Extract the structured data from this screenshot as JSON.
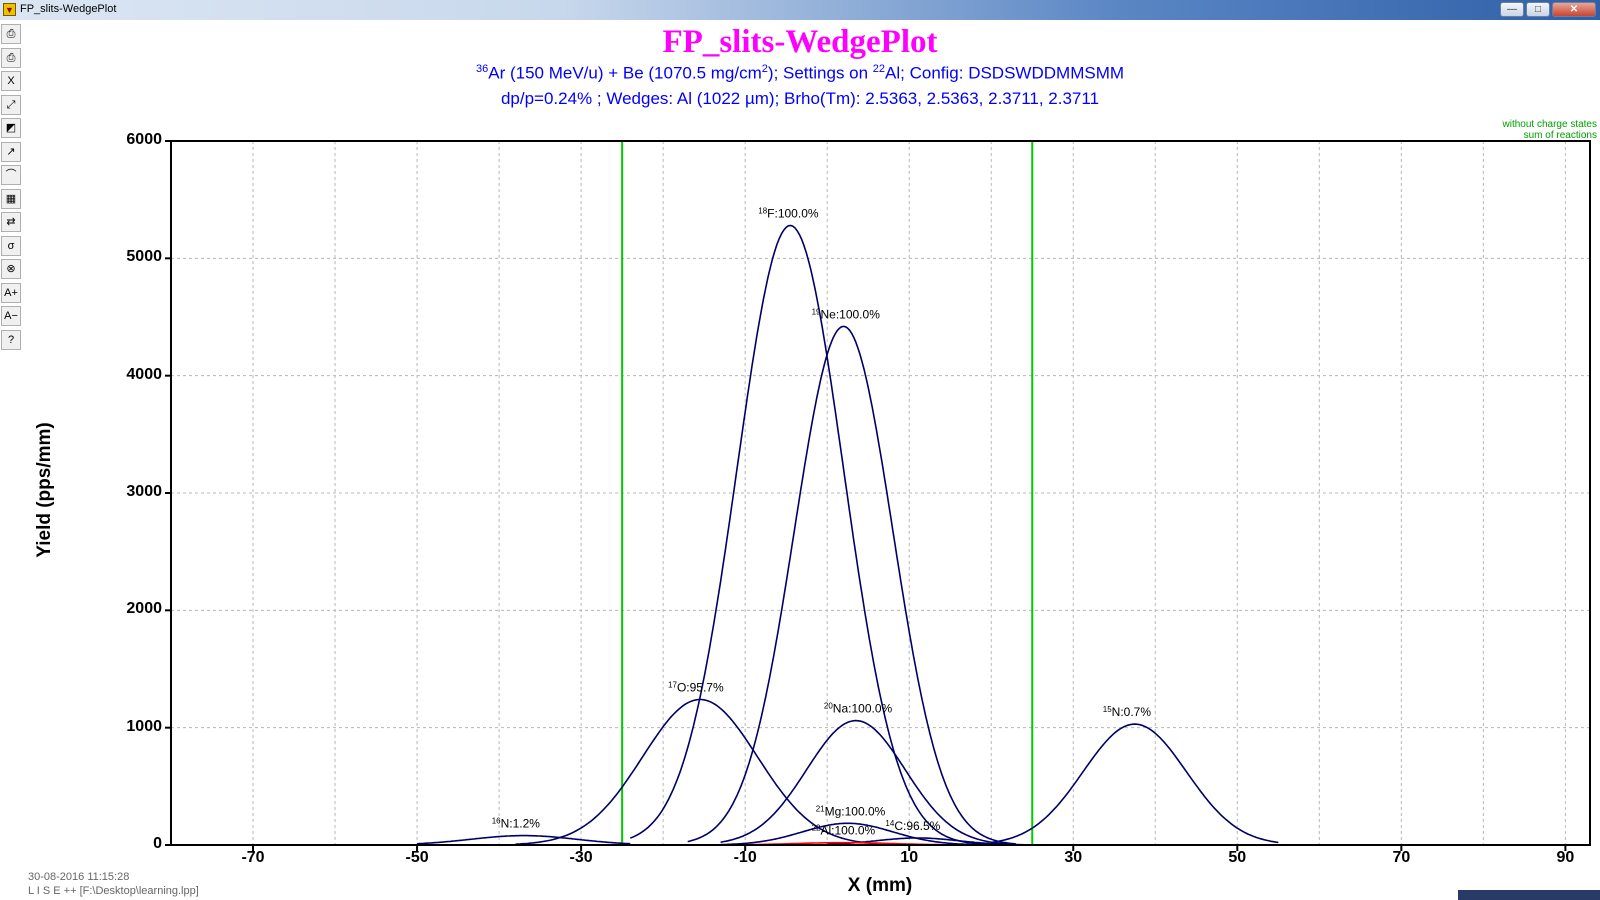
{
  "window": {
    "title": "FP_slits-WedgePlot",
    "minimize": "—",
    "maximize": "□",
    "close": "✕"
  },
  "toolbar": {
    "items": [
      {
        "name": "print-icon",
        "glyph": "⎙"
      },
      {
        "name": "print-setup-icon",
        "glyph": "⎙"
      },
      {
        "name": "close-plot-icon",
        "glyph": "X"
      },
      {
        "name": "zoom-icon",
        "glyph": "⤢"
      },
      {
        "name": "color-icon",
        "glyph": "◩"
      },
      {
        "name": "log-scale-icon",
        "glyph": "↗"
      },
      {
        "name": "curve-icon",
        "glyph": "⌒"
      },
      {
        "name": "table-icon",
        "glyph": "▦"
      },
      {
        "name": "swap-icon",
        "glyph": "⇄"
      },
      {
        "name": "sigma-icon",
        "glyph": "σ"
      },
      {
        "name": "cancel-icon",
        "glyph": "⊗"
      },
      {
        "name": "font-larger-icon",
        "glyph": "A+"
      },
      {
        "name": "font-smaller-icon",
        "glyph": "A−"
      },
      {
        "name": "help-icon",
        "glyph": "?"
      }
    ]
  },
  "header": {
    "title": "FP_slits-WedgePlot",
    "line1": {
      "beam_mass": "36",
      "beam": "Ar (150 MeV/u) + Be (1070.5 mg/cm",
      "target_exp": "2",
      "settings": ");  Settings on ",
      "setting_mass": "22",
      "setting_rest": "Al;  Config: DSDSWDDMMSMM"
    },
    "line2": "dp/p=0.24% ; Wedges: Al (1022 µm); Brho(Tm): 2.5363, 2.5363, 2.3711, 2.3711",
    "legend1": "without charge states",
    "legend2": "sum of reactions"
  },
  "footer": {
    "timestamp": "30-08-2016  11:15:28",
    "file": "L I S E ++  [F:\\Desktop\\learning.lpp]"
  },
  "chart_data": {
    "type": "line",
    "title": "FP_slits-WedgePlot",
    "xlabel": "X (mm)",
    "ylabel": "Yield (pps/mm)",
    "xlim": [
      -80,
      93
    ],
    "ylim": [
      0,
      6000
    ],
    "x_ticks": [
      -70,
      -50,
      -30,
      -10,
      10,
      30,
      50,
      70,
      90
    ],
    "y_ticks": [
      0,
      1000,
      2000,
      3000,
      4000,
      5000,
      6000
    ],
    "grid": true,
    "slits": {
      "x": [
        -25,
        25
      ],
      "color": "#00cc00"
    },
    "colors": {
      "curve": "#000066",
      "setting_curve": "#ff0000"
    },
    "series": [
      {
        "name": "18F:100.0%",
        "mass": "18",
        "label": "F:100.0%",
        "peak": {
          "x": -4.5,
          "y": 5280
        },
        "sigma": 6.5,
        "range": [
          -24,
          20
        ],
        "color": "#000066"
      },
      {
        "name": "19Ne:100.0%",
        "mass": "19",
        "label": "Ne:100.0%",
        "peak": {
          "x": 2,
          "y": 4420
        },
        "sigma": 6.0,
        "range": [
          -17,
          23
        ],
        "color": "#000066"
      },
      {
        "name": "17O:95.7%",
        "mass": "17",
        "label": "O:95.7%",
        "peak": {
          "x": -15.5,
          "y": 1240
        },
        "sigma": 7.0,
        "range": [
          -38,
          11
        ],
        "color": "#000066"
      },
      {
        "name": "20Na:100.0%",
        "mass": "20",
        "label": "Na:100.0%",
        "peak": {
          "x": 3.5,
          "y": 1060
        },
        "sigma": 6.0,
        "range": [
          -13,
          23
        ],
        "color": "#000066"
      },
      {
        "name": "15N:0.7%",
        "mass": "15",
        "label": "N:0.7%",
        "peak": {
          "x": 37.5,
          "y": 1030
        },
        "sigma": 6.3,
        "range": [
          20,
          55
        ],
        "color": "#000066"
      },
      {
        "name": "16N:1.2%",
        "mass": "16",
        "label": "N:1.2%",
        "peak": {
          "x": -37,
          "y": 80
        },
        "sigma": 6.5,
        "range": [
          -50,
          -24
        ],
        "color": "#000066"
      },
      {
        "name": "21Mg:100.0%",
        "mass": "21",
        "label": "Mg:100.0%",
        "peak": {
          "x": 2.5,
          "y": 185
        },
        "sigma": 5.5,
        "range": [
          -13,
          18
        ],
        "color": "#000066"
      },
      {
        "name": "14C:96.5%",
        "mass": "14",
        "label": "C:96.5%",
        "peak": {
          "x": 11,
          "y": 60
        },
        "sigma": 5.0,
        "range": [
          0,
          24
        ],
        "color": "#000066"
      },
      {
        "name": "22Al:100.0%",
        "mass": "22",
        "label": "Al:100.0%",
        "peak": {
          "x": 2,
          "y": 20
        },
        "sigma": 6.0,
        "range": [
          -10,
          14
        ],
        "color": "#ff0000"
      }
    ]
  }
}
